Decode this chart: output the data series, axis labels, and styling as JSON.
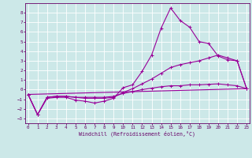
{
  "xlabel": "Windchill (Refroidissement éolien,°C)",
  "background_color": "#cce8e8",
  "line_color": "#990099",
  "grid_color": "#ffffff",
  "x_ticks": [
    0,
    1,
    2,
    3,
    4,
    5,
    6,
    7,
    8,
    9,
    10,
    11,
    12,
    13,
    14,
    15,
    16,
    17,
    18,
    19,
    20,
    21,
    22,
    23
  ],
  "y_ticks": [
    -3,
    -2,
    -1,
    0,
    1,
    2,
    3,
    4,
    5,
    6,
    7,
    8
  ],
  "xlim": [
    -0.3,
    23.3
  ],
  "ylim": [
    -3.5,
    9.0
  ],
  "line1_x": [
    0,
    1,
    2,
    3,
    4,
    5,
    6,
    7,
    8,
    9,
    10,
    11,
    12,
    13,
    14,
    15,
    16,
    17,
    18,
    19,
    20,
    21,
    22,
    23
  ],
  "line1_y": [
    -0.5,
    -2.6,
    -0.9,
    -0.8,
    -0.8,
    -1.1,
    -1.2,
    -1.4,
    -1.2,
    -0.9,
    0.2,
    0.5,
    1.9,
    3.6,
    6.4,
    8.5,
    7.2,
    6.5,
    5.0,
    4.8,
    3.5,
    3.1,
    3.0,
    0.1
  ],
  "line2_x": [
    0,
    1,
    2,
    3,
    4,
    5,
    6,
    7,
    8,
    9,
    10,
    11,
    12,
    13,
    14,
    15,
    16,
    17,
    18,
    19,
    20,
    21,
    22,
    23
  ],
  "line2_y": [
    -0.5,
    -2.6,
    -0.8,
    -0.7,
    -0.7,
    -0.8,
    -0.9,
    -0.9,
    -0.9,
    -0.8,
    -0.3,
    0.1,
    0.6,
    1.1,
    1.7,
    2.3,
    2.6,
    2.8,
    3.0,
    3.3,
    3.6,
    3.3,
    3.0,
    0.1
  ],
  "line3_x": [
    0,
    23
  ],
  "line3_y": [
    -0.5,
    0.1
  ],
  "line4_x": [
    0,
    1,
    2,
    3,
    4,
    5,
    6,
    7,
    8,
    9,
    10,
    11,
    12,
    13,
    14,
    15,
    16,
    17,
    18,
    19,
    20,
    21,
    22,
    23
  ],
  "line4_y": [
    -0.5,
    -2.6,
    -0.8,
    -0.7,
    -0.7,
    -0.8,
    -0.8,
    -0.8,
    -0.8,
    -0.7,
    -0.4,
    -0.2,
    0.0,
    0.15,
    0.3,
    0.4,
    0.4,
    0.5,
    0.5,
    0.55,
    0.6,
    0.5,
    0.4,
    0.1
  ]
}
